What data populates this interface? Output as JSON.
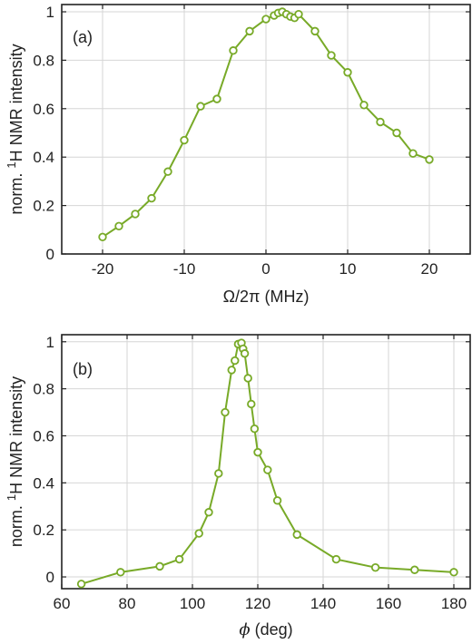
{
  "chart_data": [
    {
      "type": "line",
      "panel_label": "(a)",
      "xlabel": "Ω/2π (MHz)",
      "ylabel_prefix": "norm. ",
      "ylabel_sup": "1",
      "ylabel_suffix": "H NMR intensity",
      "xlim": [
        -25,
        25
      ],
      "ylim": [
        0,
        1.03
      ],
      "xticks": [
        -20,
        -10,
        0,
        10,
        20
      ],
      "xtick_labels": [
        "-20",
        "-10",
        "0",
        "10",
        "20"
      ],
      "yticks": [
        0,
        0.2,
        0.4,
        0.6,
        0.8,
        1
      ],
      "ytick_labels": [
        "0",
        "0.2",
        "0.4",
        "0.6",
        "0.8",
        "1"
      ],
      "grid": true,
      "color": "#78aa28",
      "series": [
        {
          "x": [
            -20,
            -18,
            -16,
            -14,
            -12,
            -10,
            -8,
            -6,
            -4,
            -2,
            0,
            1,
            1.5,
            2,
            2.5,
            3,
            3.5,
            4,
            6,
            8,
            10,
            12,
            14,
            16,
            18,
            20
          ],
          "y": [
            0.07,
            0.115,
            0.165,
            0.23,
            0.34,
            0.47,
            0.61,
            0.64,
            0.84,
            0.92,
            0.97,
            0.985,
            0.995,
            1.0,
            0.99,
            0.98,
            0.975,
            0.99,
            0.92,
            0.82,
            0.75,
            0.615,
            0.545,
            0.5,
            0.415,
            0.39
          ]
        }
      ]
    },
    {
      "type": "line",
      "panel_label": "(b)",
      "xlabel_symbol": "ϕ",
      "xlabel": " (deg)",
      "ylabel_prefix": "norm. ",
      "ylabel_sup": "1",
      "ylabel_suffix": "H NMR intensity",
      "xlim": [
        60,
        185
      ],
      "ylim": [
        -0.05,
        1.03
      ],
      "xticks": [
        60,
        80,
        100,
        120,
        140,
        160,
        180
      ],
      "xtick_labels": [
        "60",
        "80",
        "100",
        "120",
        "140",
        "160",
        "180"
      ],
      "yticks": [
        0,
        0.2,
        0.4,
        0.6,
        0.8,
        1
      ],
      "ytick_labels": [
        "0",
        "0.2",
        "0.4",
        "0.6",
        "0.8",
        "1"
      ],
      "grid": true,
      "color": "#78aa28",
      "series": [
        {
          "x": [
            66,
            78,
            90,
            96,
            102,
            105,
            108,
            110,
            112,
            113,
            114,
            115,
            115.5,
            116,
            117,
            118,
            119,
            120,
            123,
            126,
            132,
            144,
            156,
            168,
            180
          ],
          "y": [
            -0.03,
            0.02,
            0.045,
            0.075,
            0.185,
            0.275,
            0.44,
            0.7,
            0.88,
            0.92,
            0.99,
            0.995,
            0.97,
            0.95,
            0.845,
            0.735,
            0.63,
            0.53,
            0.455,
            0.325,
            0.18,
            0.075,
            0.04,
            0.03,
            0.02
          ]
        }
      ]
    }
  ]
}
